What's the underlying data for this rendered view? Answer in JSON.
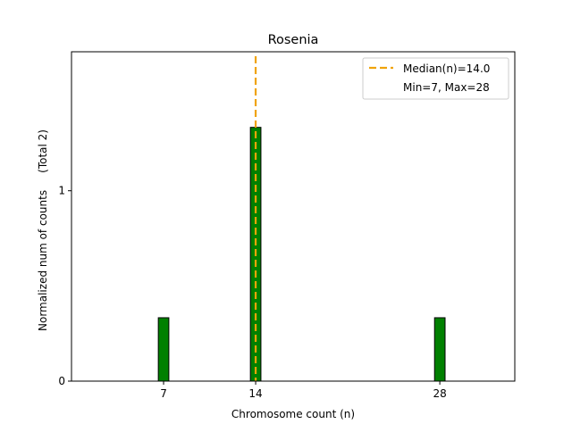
{
  "chart_data": {
    "type": "bar",
    "title": "Rosenia",
    "xlabel": "Chromosome count (n)",
    "ylabel": "Normalized num of counts     (Total 2)",
    "x": [
      7,
      14,
      28
    ],
    "values": [
      0.333,
      1.333,
      0.333
    ],
    "bar_width": 0.8,
    "xlim": [
      0,
      33.7
    ],
    "ylim": [
      0,
      1.73
    ],
    "xticks": [
      7,
      14,
      28
    ],
    "yticks": [
      0,
      1
    ],
    "grid": false,
    "bar_color": "#008000",
    "bar_edge_color": "#000000",
    "median": {
      "value": 14.0,
      "color": "#f0a30a",
      "label": "Median(n)=14.0"
    },
    "legend": {
      "position": "top-right",
      "entries": [
        "Median(n)=14.0",
        "Min=7, Max=28"
      ]
    }
  }
}
